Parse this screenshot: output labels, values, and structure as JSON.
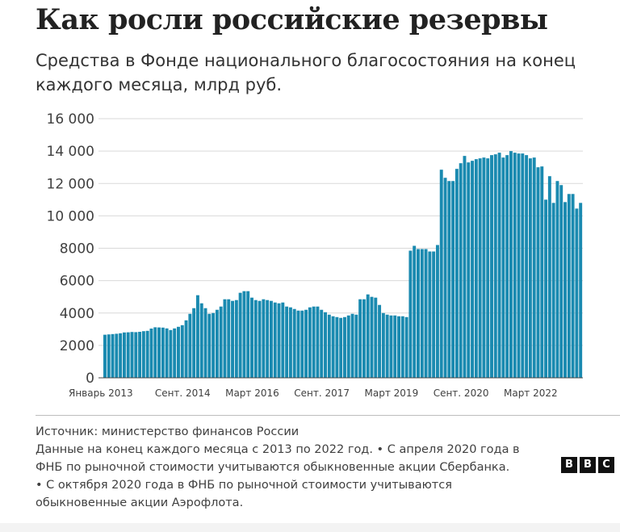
{
  "header": {
    "title": "Как росли российские резервы",
    "subtitle": "Средства в Фонде национального благосостояния на конец каждого месяца, млрд руб."
  },
  "chart_data": {
    "type": "bar",
    "title": "Как росли российские резервы",
    "subtitle": "Средства в Фонде национального благосостояния на конец каждого месяца, млрд руб.",
    "ylabel": "",
    "xlabel": "",
    "ylim": [
      0,
      16000
    ],
    "y_ticks": [
      "0",
      "2000",
      "4000",
      "6000",
      "8000",
      "10 000",
      "12 000",
      "14 000",
      "16 000"
    ],
    "y_tick_values": [
      0,
      2000,
      4000,
      6000,
      8000,
      10000,
      12000,
      14000,
      16000
    ],
    "x_tick_labels": [
      "Январь 2013",
      "Сент. 2014",
      "Март 2016",
      "Сент. 2017",
      "Март 2019",
      "Сент. 2020",
      "Март 2022"
    ],
    "x_tick_index": [
      0,
      20,
      38,
      56,
      74,
      92,
      110
    ],
    "start_month": "Январь 2013",
    "bar_color": "#1a8ab0",
    "grid": true,
    "legend": "none",
    "values": [
      2660,
      2680,
      2700,
      2720,
      2750,
      2800,
      2810,
      2830,
      2820,
      2840,
      2880,
      2900,
      3040,
      3120,
      3110,
      3100,
      3050,
      2950,
      3050,
      3150,
      3250,
      3550,
      3950,
      4300,
      5100,
      4600,
      4300,
      3950,
      4000,
      4200,
      4400,
      4850,
      4850,
      4750,
      4800,
      5250,
      5350,
      5350,
      4950,
      4800,
      4750,
      4850,
      4800,
      4750,
      4650,
      4600,
      4650,
      4400,
      4350,
      4250,
      4150,
      4150,
      4200,
      4350,
      4400,
      4400,
      4200,
      4050,
      3900,
      3800,
      3750,
      3700,
      3750,
      3850,
      3950,
      3900,
      4850,
      4850,
      5150,
      5000,
      4950,
      4500,
      4000,
      3900,
      3850,
      3850,
      3800,
      3800,
      3750,
      7850,
      8150,
      7950,
      7950,
      7950,
      7800,
      7800,
      8200,
      12850,
      12350,
      12150,
      12150,
      12900,
      13250,
      13700,
      13300,
      13400,
      13500,
      13550,
      13600,
      13550,
      13750,
      13800,
      13900,
      13600,
      13750,
      14000,
      13900,
      13850,
      13850,
      13750,
      13550,
      13600,
      13000,
      13050,
      11000,
      12450,
      10800,
      12150,
      11900,
      10850,
      11350,
      11350,
      10450,
      10800
    ]
  },
  "footer": {
    "source": "Источник: министерство финансов России",
    "note_line1": "Данные на конец каждого месяца с 2013 по 2022 год. • С апреля 2020 года в",
    "note_line2": "ФНБ по рыночной стоимости учитываются обыкновенные акции Сбербанка.",
    "note_line3": "• С октября 2020 года в ФНБ по рыночной стоимости учитываются",
    "note_line4": "обыкновенные акции Аэрофлота."
  },
  "logo": {
    "letters": [
      "B",
      "B",
      "C"
    ]
  }
}
